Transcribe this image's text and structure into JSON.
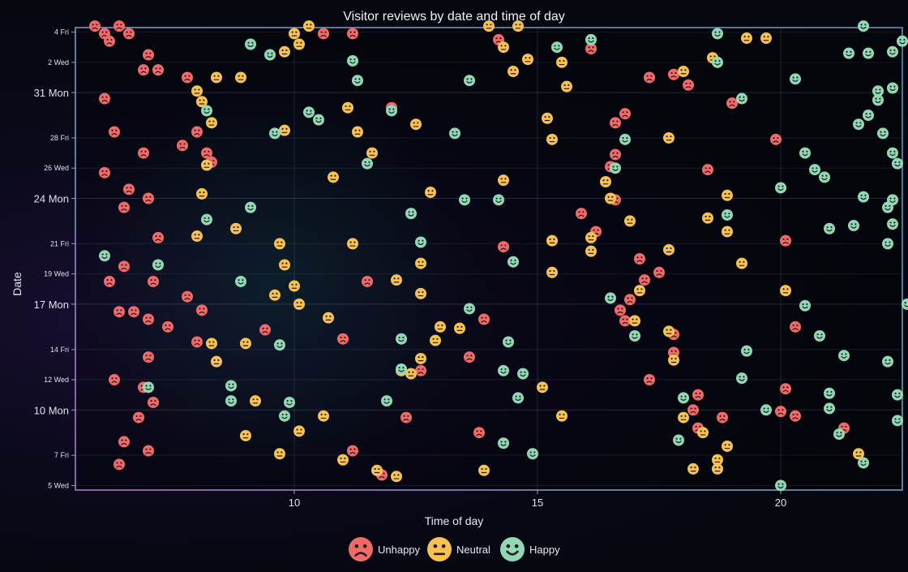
{
  "chart_data": {
    "type": "scatter",
    "title": "Visitor reviews by date and time of day",
    "xlabel": "Time of day",
    "ylabel": "Date",
    "xlim": [
      5.5,
      22.5
    ],
    "xticks": [
      10,
      15,
      20
    ],
    "ylim": [
      4.7,
      35.3
    ],
    "y_ticks": [
      {
        "value": 5,
        "label": "5 Wed",
        "major": false
      },
      {
        "value": 7,
        "label": "7 Fri",
        "major": false
      },
      {
        "value": 10,
        "label": "10 Mon",
        "major": true
      },
      {
        "value": 12,
        "label": "12 Wed",
        "major": false
      },
      {
        "value": 14,
        "label": "14 Fri",
        "major": false
      },
      {
        "value": 17,
        "label": "17 Mon",
        "major": true
      },
      {
        "value": 19,
        "label": "19 Wed",
        "major": false
      },
      {
        "value": 21,
        "label": "21 Fri",
        "major": false
      },
      {
        "value": 24,
        "label": "24 Mon",
        "major": true
      },
      {
        "value": 26,
        "label": "26 Wed",
        "major": false
      },
      {
        "value": 28,
        "label": "28 Fri",
        "major": false
      },
      {
        "value": 31,
        "label": "31 Mon",
        "major": true
      },
      {
        "value": 33,
        "label": "2 Wed",
        "major": false
      },
      {
        "value": 35,
        "label": "4 Fri",
        "major": false
      }
    ],
    "grid": true,
    "legend_position": "bottom",
    "series": [
      {
        "name": "Unhappy",
        "color": "#f06a6a",
        "icon": "frown-face-icon",
        "points": [
          [
            5.9,
            35.4
          ],
          [
            6.4,
            35.4
          ],
          [
            6.1,
            34.9
          ],
          [
            6.6,
            34.9
          ],
          [
            6.2,
            34.4
          ],
          [
            7.0,
            33.5
          ],
          [
            6.9,
            32.5
          ],
          [
            7.2,
            32.5
          ],
          [
            7.8,
            32.0
          ],
          [
            6.1,
            30.6
          ],
          [
            6.3,
            28.4
          ],
          [
            6.9,
            27.0
          ],
          [
            8.0,
            28.4
          ],
          [
            7.7,
            27.5
          ],
          [
            8.2,
            27.0
          ],
          [
            8.3,
            26.4
          ],
          [
            6.1,
            25.7
          ],
          [
            6.6,
            24.6
          ],
          [
            7.0,
            24.0
          ],
          [
            6.5,
            23.4
          ],
          [
            7.2,
            21.4
          ],
          [
            6.5,
            19.5
          ],
          [
            6.2,
            18.5
          ],
          [
            7.1,
            18.5
          ],
          [
            7.8,
            17.5
          ],
          [
            8.1,
            16.6
          ],
          [
            6.4,
            16.5
          ],
          [
            6.7,
            16.5
          ],
          [
            7.0,
            16.0
          ],
          [
            7.4,
            15.5
          ],
          [
            8.0,
            14.5
          ],
          [
            7.0,
            13.5
          ],
          [
            6.3,
            12.0
          ],
          [
            6.9,
            11.5
          ],
          [
            7.1,
            10.5
          ],
          [
            6.8,
            9.5
          ],
          [
            6.5,
            7.9
          ],
          [
            7.0,
            7.3
          ],
          [
            6.4,
            6.4
          ],
          [
            10.6,
            34.9
          ],
          [
            11.2,
            34.9
          ],
          [
            12.0,
            30.0
          ],
          [
            9.4,
            15.3
          ],
          [
            11.5,
            18.5
          ],
          [
            11.0,
            14.7
          ],
          [
            12.6,
            12.6
          ],
          [
            13.6,
            13.5
          ],
          [
            13.9,
            16.0
          ],
          [
            14.3,
            20.8
          ],
          [
            12.3,
            9.5
          ],
          [
            13.8,
            8.5
          ],
          [
            11.2,
            7.3
          ],
          [
            11.8,
            5.7
          ],
          [
            14.2,
            34.5
          ],
          [
            16.1,
            33.9
          ],
          [
            16.6,
            29.0
          ],
          [
            16.8,
            29.6
          ],
          [
            17.3,
            32.0
          ],
          [
            17.8,
            32.2
          ],
          [
            18.1,
            31.5
          ],
          [
            19.0,
            30.3
          ],
          [
            16.6,
            26.9
          ],
          [
            16.5,
            26.1
          ],
          [
            16.6,
            23.9
          ],
          [
            15.9,
            23.0
          ],
          [
            16.2,
            21.8
          ],
          [
            17.1,
            20.0
          ],
          [
            17.5,
            19.1
          ],
          [
            17.2,
            18.6
          ],
          [
            16.9,
            17.3
          ],
          [
            16.7,
            16.6
          ],
          [
            16.8,
            15.9
          ],
          [
            17.8,
            15.0
          ],
          [
            17.8,
            13.8
          ],
          [
            17.3,
            12.0
          ],
          [
            18.3,
            11.0
          ],
          [
            18.2,
            10.0
          ],
          [
            18.8,
            9.5
          ],
          [
            18.3,
            8.8
          ],
          [
            20.1,
            11.4
          ],
          [
            20.0,
            9.9
          ],
          [
            20.3,
            9.6
          ],
          [
            21.3,
            8.8
          ],
          [
            18.5,
            25.9
          ],
          [
            19.9,
            27.9
          ],
          [
            20.1,
            21.2
          ],
          [
            20.3,
            15.5
          ]
        ]
      },
      {
        "name": "Neutral",
        "color": "#f6c253",
        "icon": "neutral-face-icon",
        "points": [
          [
            8.4,
            32.0
          ],
          [
            8.9,
            32.0
          ],
          [
            8.0,
            31.1
          ],
          [
            8.1,
            30.4
          ],
          [
            8.3,
            29.0
          ],
          [
            8.2,
            26.2
          ],
          [
            9.8,
            33.7
          ],
          [
            10.1,
            34.2
          ],
          [
            10.3,
            35.4
          ],
          [
            10.0,
            34.9
          ],
          [
            9.8,
            28.5
          ],
          [
            11.1,
            30.0
          ],
          [
            11.3,
            28.4
          ],
          [
            11.6,
            27.0
          ],
          [
            12.5,
            28.9
          ],
          [
            10.8,
            25.4
          ],
          [
            8.1,
            24.3
          ],
          [
            8.8,
            22.0
          ],
          [
            8.0,
            21.5
          ],
          [
            9.7,
            21.0
          ],
          [
            9.8,
            19.6
          ],
          [
            10.0,
            18.2
          ],
          [
            9.6,
            17.6
          ],
          [
            10.1,
            17.0
          ],
          [
            11.2,
            21.0
          ],
          [
            12.1,
            18.6
          ],
          [
            12.6,
            19.7
          ],
          [
            12.6,
            17.7
          ],
          [
            13.0,
            15.5
          ],
          [
            12.9,
            14.6
          ],
          [
            12.2,
            12.6
          ],
          [
            10.7,
            16.1
          ],
          [
            9.0,
            14.4
          ],
          [
            8.3,
            14.4
          ],
          [
            8.4,
            13.2
          ],
          [
            9.2,
            10.6
          ],
          [
            10.6,
            9.6
          ],
          [
            10.1,
            8.6
          ],
          [
            9.0,
            8.3
          ],
          [
            9.7,
            7.1
          ],
          [
            11.0,
            6.7
          ],
          [
            11.7,
            6.0
          ],
          [
            12.1,
            5.6
          ],
          [
            12.4,
            12.4
          ],
          [
            12.6,
            13.4
          ],
          [
            13.4,
            15.4
          ],
          [
            13.9,
            6.0
          ],
          [
            14.0,
            35.4
          ],
          [
            14.6,
            35.4
          ],
          [
            14.3,
            34.0
          ],
          [
            14.5,
            32.4
          ],
          [
            14.8,
            33.2
          ],
          [
            15.5,
            33.0
          ],
          [
            15.6,
            31.4
          ],
          [
            15.2,
            29.3
          ],
          [
            15.3,
            27.9
          ],
          [
            14.3,
            25.2
          ],
          [
            12.8,
            24.4
          ],
          [
            15.3,
            21.2
          ],
          [
            15.3,
            19.1
          ],
          [
            16.1,
            21.4
          ],
          [
            16.1,
            20.5
          ],
          [
            15.1,
            11.5
          ],
          [
            15.5,
            9.6
          ],
          [
            16.4,
            25.1
          ],
          [
            16.5,
            24.0
          ],
          [
            16.9,
            22.5
          ],
          [
            17.1,
            17.9
          ],
          [
            17.0,
            15.9
          ],
          [
            17.7,
            15.2
          ],
          [
            17.8,
            13.3
          ],
          [
            18.0,
            9.5
          ],
          [
            18.4,
            8.5
          ],
          [
            18.7,
            6.7
          ],
          [
            18.9,
            7.6
          ],
          [
            18.7,
            6.1
          ],
          [
            18.2,
            6.1
          ],
          [
            18.0,
            32.4
          ],
          [
            18.6,
            33.3
          ],
          [
            18.9,
            24.2
          ],
          [
            18.5,
            22.7
          ],
          [
            18.9,
            21.8
          ],
          [
            17.7,
            20.6
          ],
          [
            19.3,
            34.6
          ],
          [
            19.7,
            34.6
          ],
          [
            19.2,
            19.7
          ],
          [
            20.1,
            17.9
          ],
          [
            21.6,
            7.1
          ],
          [
            17.7,
            28.0
          ]
        ]
      },
      {
        "name": "Happy",
        "color": "#8fd9b6",
        "icon": "smile-face-icon",
        "points": [
          [
            8.2,
            29.8
          ],
          [
            8.2,
            22.6
          ],
          [
            7.2,
            19.6
          ],
          [
            6.1,
            20.2
          ],
          [
            7.0,
            11.5
          ],
          [
            8.7,
            11.6
          ],
          [
            8.7,
            10.6
          ],
          [
            9.7,
            14.3
          ],
          [
            9.9,
            10.5
          ],
          [
            9.8,
            9.6
          ],
          [
            9.1,
            34.2
          ],
          [
            9.5,
            33.5
          ],
          [
            9.6,
            28.3
          ],
          [
            9.1,
            23.4
          ],
          [
            8.9,
            18.5
          ],
          [
            10.3,
            29.7
          ],
          [
            10.5,
            29.2
          ],
          [
            11.3,
            31.8
          ],
          [
            11.2,
            33.1
          ],
          [
            12.0,
            29.8
          ],
          [
            11.5,
            26.3
          ],
          [
            12.4,
            23.0
          ],
          [
            12.6,
            21.1
          ],
          [
            12.2,
            14.7
          ],
          [
            12.2,
            12.7
          ],
          [
            11.9,
            10.6
          ],
          [
            13.3,
            28.3
          ],
          [
            13.6,
            31.8
          ],
          [
            13.5,
            23.9
          ],
          [
            14.2,
            23.9
          ],
          [
            13.6,
            16.7
          ],
          [
            14.4,
            14.5
          ],
          [
            14.3,
            12.6
          ],
          [
            14.6,
            10.8
          ],
          [
            14.7,
            12.4
          ],
          [
            14.3,
            7.8
          ],
          [
            14.9,
            7.1
          ],
          [
            14.5,
            19.8
          ],
          [
            15.4,
            34.0
          ],
          [
            16.1,
            34.5
          ],
          [
            16.8,
            27.9
          ],
          [
            16.6,
            26.0
          ],
          [
            16.5,
            17.4
          ],
          [
            17.0,
            14.9
          ],
          [
            18.0,
            10.8
          ],
          [
            17.9,
            8.0
          ],
          [
            18.7,
            34.9
          ],
          [
            18.7,
            33.0
          ],
          [
            19.2,
            30.6
          ],
          [
            18.9,
            22.9
          ],
          [
            19.3,
            13.9
          ],
          [
            19.2,
            12.1
          ],
          [
            19.7,
            10.0
          ],
          [
            20.0,
            5.0
          ],
          [
            20.3,
            31.9
          ],
          [
            20.5,
            27.0
          ],
          [
            20.7,
            25.9
          ],
          [
            20.0,
            24.7
          ],
          [
            20.5,
            16.9
          ],
          [
            20.9,
            25.4
          ],
          [
            20.8,
            14.9
          ],
          [
            21.0,
            11.1
          ],
          [
            21.0,
            10.1
          ],
          [
            21.3,
            13.6
          ],
          [
            21.5,
            22.2
          ],
          [
            21.2,
            8.4
          ],
          [
            21.0,
            22.0
          ],
          [
            21.6,
            28.9
          ],
          [
            21.7,
            24.1
          ],
          [
            21.8,
            33.6
          ],
          [
            21.7,
            35.4
          ],
          [
            21.4,
            33.6
          ],
          [
            21.8,
            29.5
          ],
          [
            22.0,
            31.1
          ],
          [
            22.0,
            30.5
          ],
          [
            22.3,
            33.7
          ],
          [
            22.4,
            26.3
          ],
          [
            22.3,
            27.0
          ],
          [
            22.3,
            23.9
          ],
          [
            22.2,
            23.4
          ],
          [
            22.3,
            22.3
          ],
          [
            22.2,
            21.0
          ],
          [
            22.2,
            13.2
          ],
          [
            22.1,
            28.3
          ],
          [
            22.4,
            11.0
          ],
          [
            22.4,
            9.3
          ],
          [
            22.6,
            17.0
          ],
          [
            22.3,
            31.3
          ],
          [
            22.5,
            34.4
          ],
          [
            21.7,
            6.5
          ]
        ]
      }
    ]
  }
}
